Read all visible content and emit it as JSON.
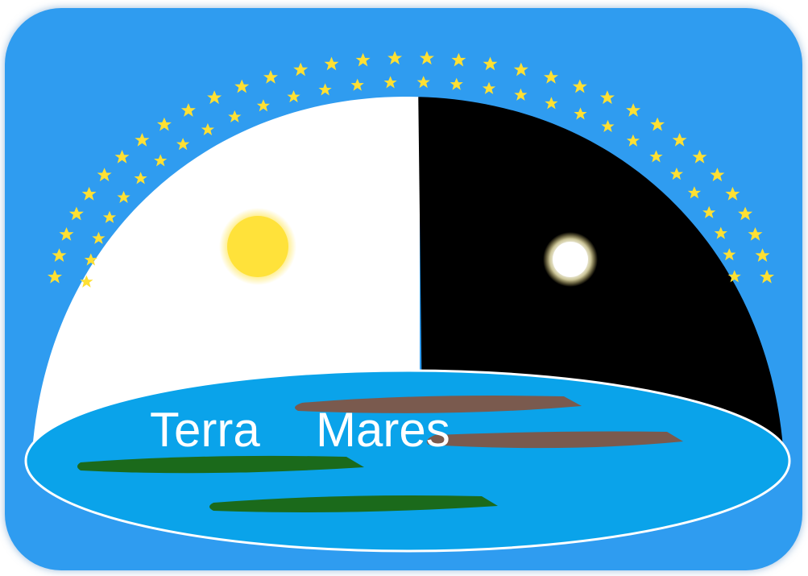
{
  "logo": {
    "words": [
      "Terra",
      "Mares"
    ],
    "colors": {
      "background": "#2f9cf0",
      "day_sky": "#ffffff",
      "night_sky": "#000000",
      "sun": "#ffe23a",
      "moon": "#ffffff",
      "star": "#ffe033",
      "sea": "#0aa3ea",
      "green_land": "#1b6a1b",
      "brown_land": "#7a5a4e",
      "text": "#ffffff"
    },
    "icons": [
      "sun-icon",
      "moon-icon",
      "star-icon"
    ]
  }
}
